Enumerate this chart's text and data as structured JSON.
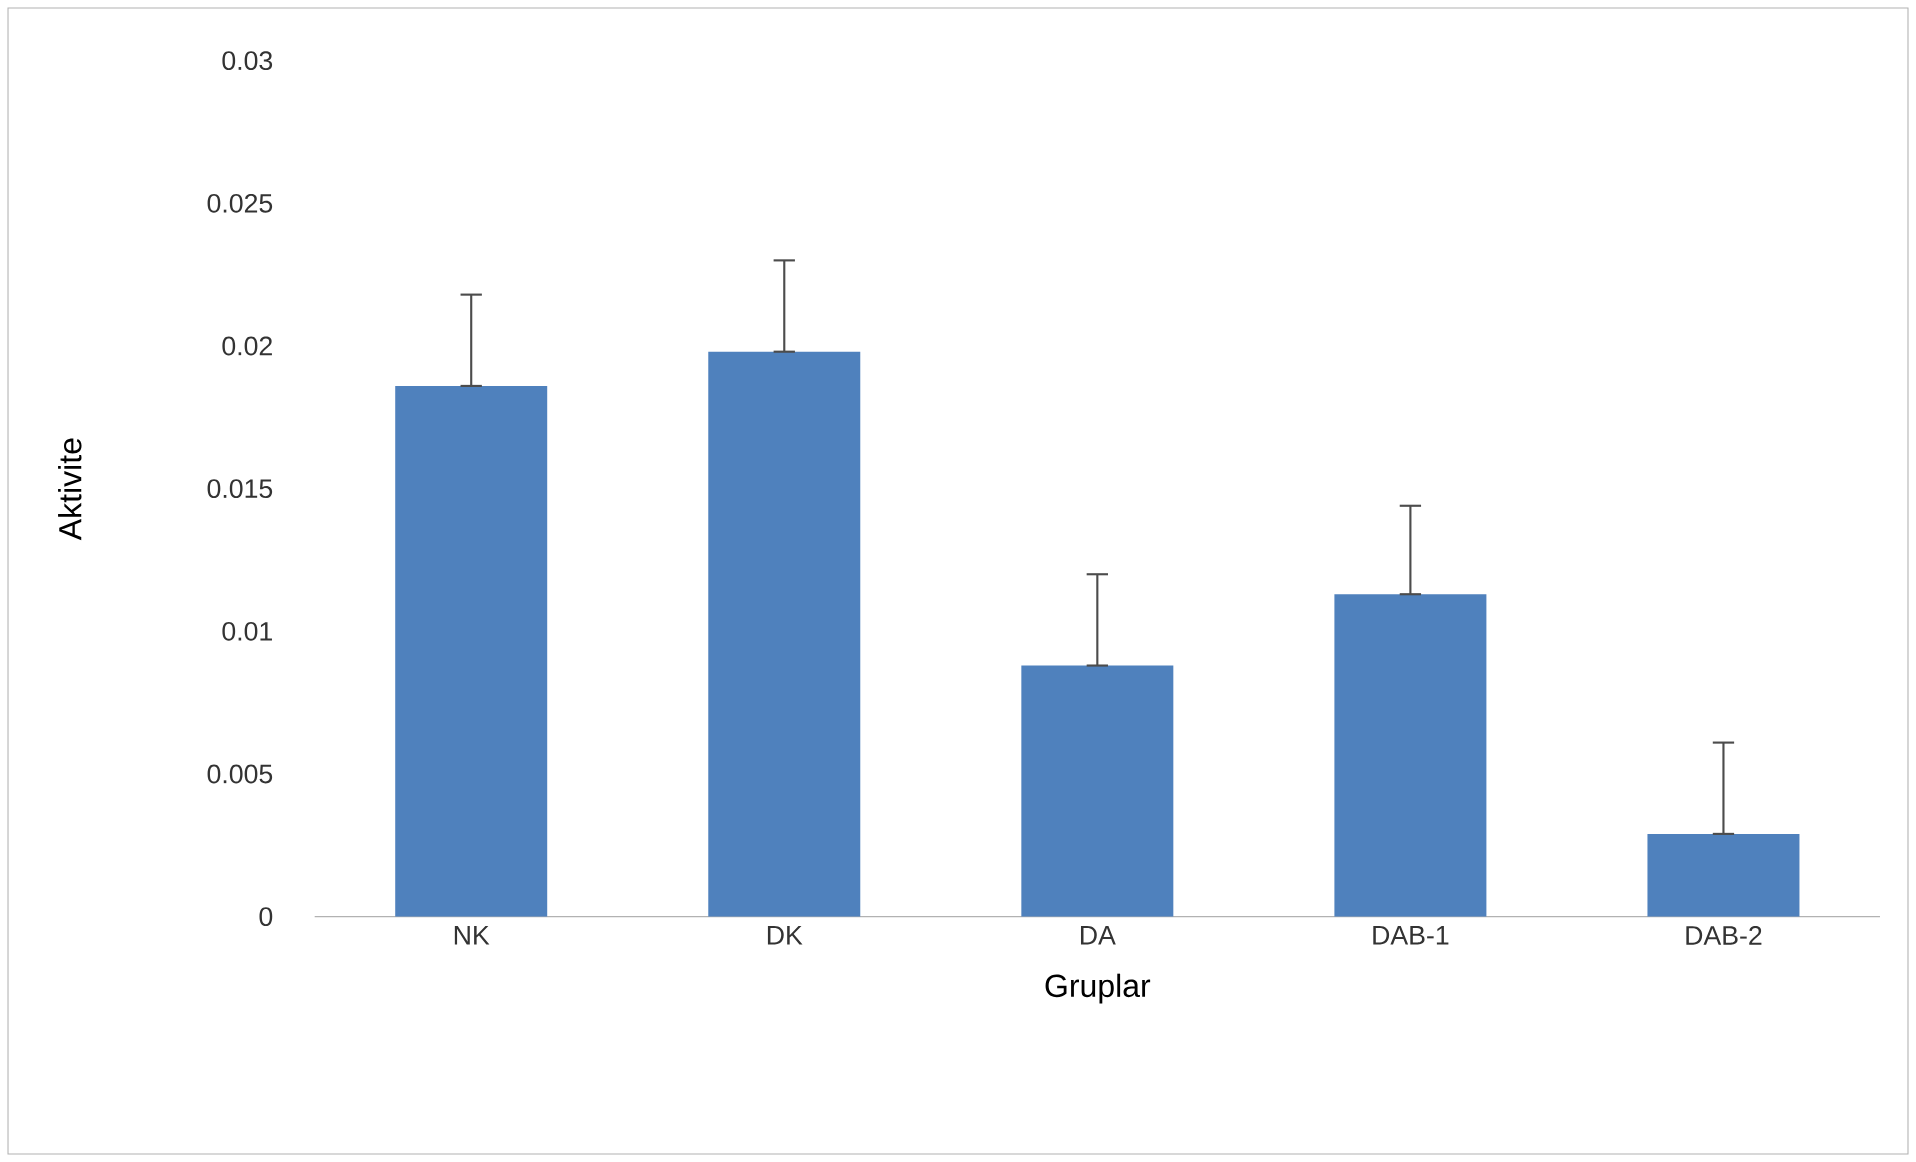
{
  "chart_data": {
    "type": "bar",
    "xlabel": "Gruplar",
    "ylabel": "Aktivite",
    "categories": [
      "NK",
      "DK",
      "DA",
      "DAB-1",
      "DAB-2"
    ],
    "values": [
      0.0186,
      0.0198,
      0.0088,
      0.0113,
      0.0029
    ],
    "errors": [
      [
        0.0186,
        0.0218
      ],
      [
        0.0198,
        0.023
      ],
      [
        0.0088,
        0.012
      ],
      [
        0.0113,
        0.0144
      ],
      [
        0.0029,
        0.0061
      ]
    ],
    "color": "#4f81bd",
    "ylim": [
      0,
      0.03
    ],
    "yticks": [
      0,
      0.005,
      0.01,
      0.015,
      0.02,
      0.025,
      0.03
    ],
    "grid": false
  }
}
